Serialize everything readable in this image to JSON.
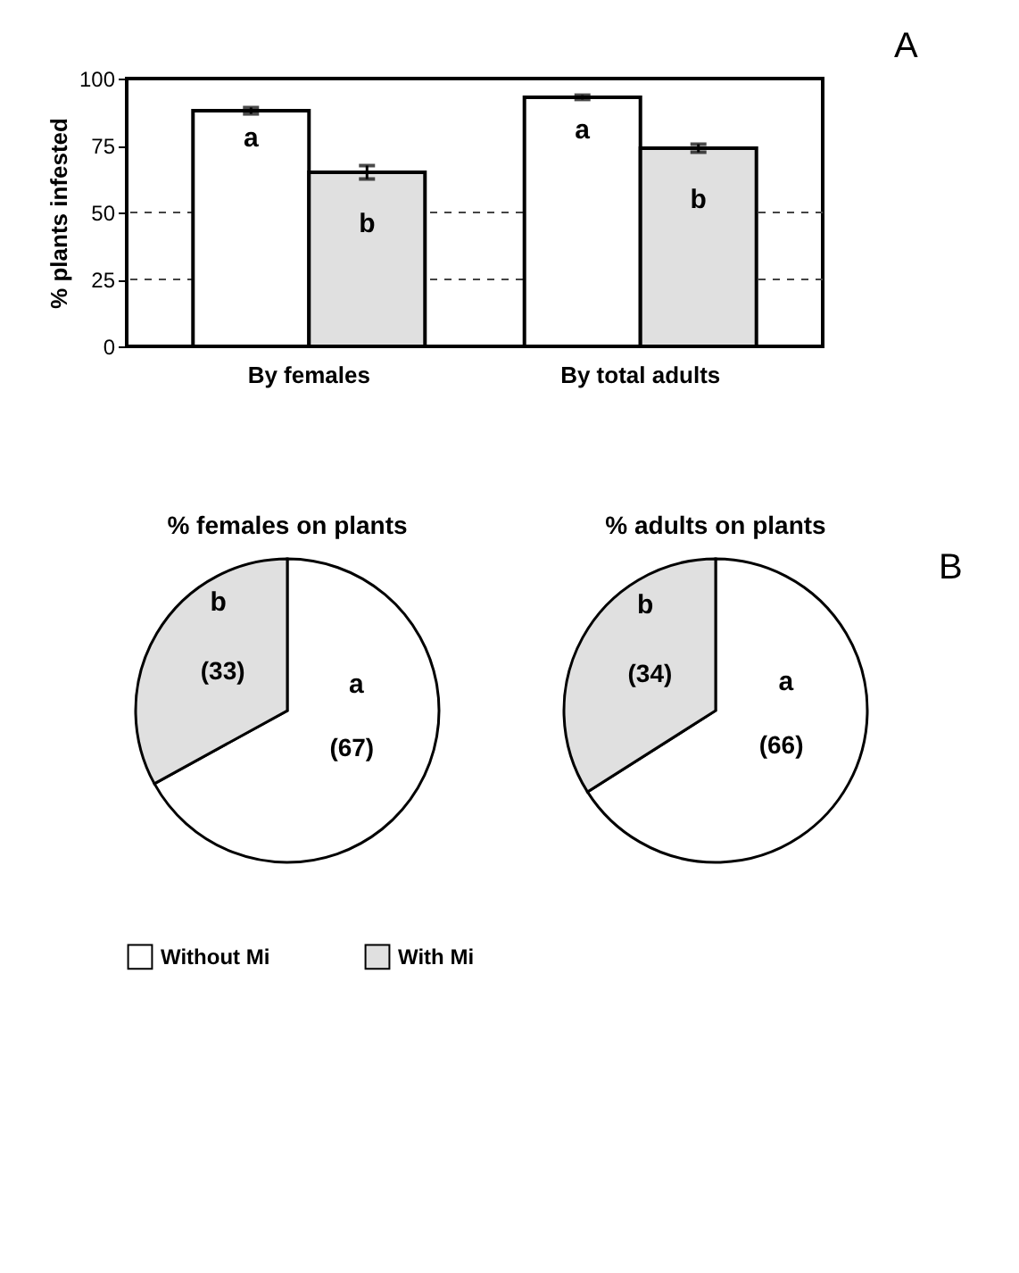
{
  "chart_data": [
    {
      "type": "bar",
      "ylabel": "% plants infested",
      "categories": [
        "By females",
        "By total adults"
      ],
      "series": [
        {
          "name": "Without Mi",
          "color": "#ffffff",
          "values": [
            88,
            93
          ],
          "errors": [
            1.2,
            0.8
          ]
        },
        {
          "name": "With Mi",
          "color": "#e0e0e0",
          "values": [
            65,
            74
          ],
          "errors": [
            2.5,
            1.5
          ]
        }
      ],
      "ylim": [
        0,
        100
      ],
      "yticks": [
        0,
        25,
        50,
        75,
        100
      ],
      "ref_lines": [
        {
          "axis": "y",
          "value": 50,
          "line_style": "dashed"
        },
        {
          "axis": "y",
          "value": 25,
          "line_style": "dashed"
        }
      ],
      "annotations": [
        {
          "text": "a",
          "x": "By females",
          "y": 78
        },
        {
          "text": "b",
          "x": "By females",
          "y": 46
        },
        {
          "text": "a",
          "x": "By total adults",
          "y": 81
        },
        {
          "text": "b",
          "x": "By total adults",
          "y": 55
        },
        "A"
      ],
      "legend": "bottom"
    },
    {
      "type": "pie",
      "title": "% females on plants",
      "categories": [
        null,
        null
      ],
      "values": [
        67,
        33
      ],
      "colors": [
        "#ffffff",
        "#e0e0e0"
      ],
      "value_labels": [
        "(67)",
        "(33)"
      ],
      "annotations": [
        "a",
        "b"
      ]
    },
    {
      "type": "pie",
      "title": "% adults on plants",
      "categories": [
        null,
        null
      ],
      "values": [
        66,
        34
      ],
      "colors": [
        "#ffffff",
        "#e0e0e0"
      ],
      "value_labels": [
        "(66)",
        "(34)"
      ],
      "annotations": [
        "a",
        "b",
        "B"
      ]
    }
  ]
}
